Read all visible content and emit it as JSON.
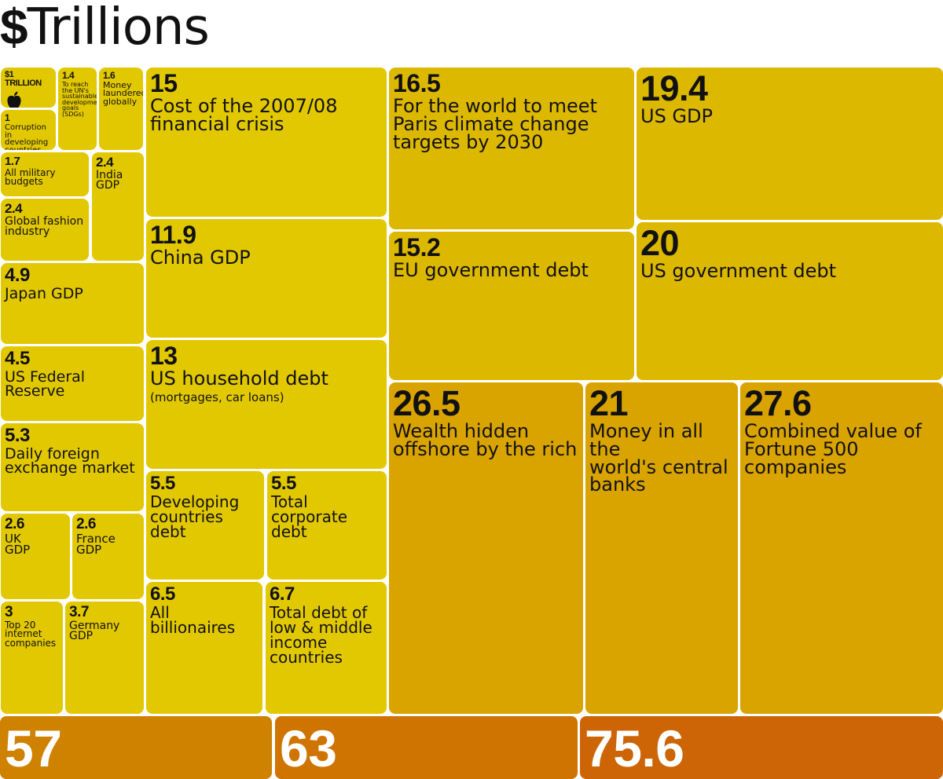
{
  "title": {
    "symbol": "$",
    "word": "Trillions"
  },
  "colors": {
    "light": "#e2c800",
    "mid": "#ddb800",
    "dark": "#d9a300",
    "orange1": "#cf8100",
    "orange2": "#cf7400",
    "orange3": "#cd6507"
  },
  "chart_data": {
    "type": "treemap",
    "title": "$Trillions",
    "unit": "trillion US dollars",
    "items": [
      {
        "value": 1,
        "value_label": "$1 TRILLION",
        "label": "",
        "icon": "apple-icon"
      },
      {
        "value": 1,
        "value_label": "1",
        "label": "Corruption in\ndeveloping\ncountries"
      },
      {
        "value": 1.4,
        "value_label": "1.4",
        "label": "To reach\nthe UN's\nsustainable\ndevelopment\ngoals\n(SDGs)"
      },
      {
        "value": 1.6,
        "value_label": "1.6",
        "label": "Money\nlaundered\nglobally"
      },
      {
        "value": 1.7,
        "value_label": "1.7",
        "label": "All military budgets"
      },
      {
        "value": 2.4,
        "value_label": "2.4",
        "label": "India\nGDP"
      },
      {
        "value": 2.4,
        "value_label": "2.4",
        "label": "Global fashion\nindustry"
      },
      {
        "value": 4.9,
        "value_label": "4.9",
        "label": "Japan GDP"
      },
      {
        "value": 4.5,
        "value_label": "4.5",
        "label": "US Federal\nReserve"
      },
      {
        "value": 5.3,
        "value_label": "5.3",
        "label": "Daily foreign\nexchange market"
      },
      {
        "value": 2.6,
        "value_label": "2.6",
        "label": "UK\nGDP"
      },
      {
        "value": 2.6,
        "value_label": "2.6",
        "label": "France\nGDP"
      },
      {
        "value": 3,
        "value_label": "3",
        "label": "Top 20\ninternet\ncompanies"
      },
      {
        "value": 3.7,
        "value_label": "3.7",
        "label": "Germany\nGDP"
      },
      {
        "value": 15,
        "value_label": "15",
        "label": "Cost of the 2007/08\nfinancial crisis"
      },
      {
        "value": 11.9,
        "value_label": "11.9",
        "label": "China GDP"
      },
      {
        "value": 13,
        "value_label": "13",
        "label": "US household debt",
        "sublabel": "(mortgages, car loans)"
      },
      {
        "value": 5.5,
        "value_label": "5.5",
        "label": "Developing\ncountries\ndebt"
      },
      {
        "value": 5.5,
        "value_label": "5.5",
        "label": "Total corporate\ndebt"
      },
      {
        "value": 6.5,
        "value_label": "6.5",
        "label": "All billionaires"
      },
      {
        "value": 6.7,
        "value_label": "6.7",
        "label": "Total debt of\nlow & middle\nincome\ncountries"
      },
      {
        "value": 16.5,
        "value_label": "16.5",
        "label": "For the world to meet\nParis climate change\ntargets by 2030"
      },
      {
        "value": 15.2,
        "value_label": "15.2",
        "label": "EU government debt"
      },
      {
        "value": 19.4,
        "value_label": "19.4",
        "label": "US GDP"
      },
      {
        "value": 20,
        "value_label": "20",
        "label": "US government debt"
      },
      {
        "value": 26.5,
        "value_label": "26.5",
        "label": "Wealth hidden\noffshore by the rich"
      },
      {
        "value": 21,
        "value_label": "21",
        "label": "Money in all the\nworld's central\nbanks"
      },
      {
        "value": 27.6,
        "value_label": "27.6",
        "label": "Combined value of\nFortune 500\ncompanies"
      },
      {
        "value": 57,
        "value_label": "57",
        "label": ""
      },
      {
        "value": 63,
        "value_label": "63",
        "label": ""
      },
      {
        "value": 75.6,
        "value_label": "75.6",
        "label": ""
      }
    ]
  }
}
